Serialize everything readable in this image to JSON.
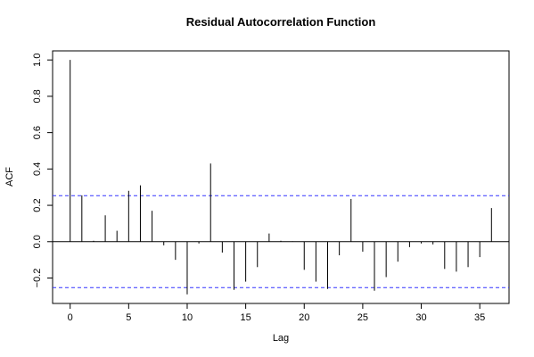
{
  "chart_data": {
    "type": "bar",
    "title": "Residual Autocorrelation Function",
    "xlabel": "Lag",
    "ylabel": "ACF",
    "xlim": [
      -1.5,
      37.5
    ],
    "ylim": [
      -0.34,
      1.05
    ],
    "x_ticks": [
      0,
      5,
      10,
      15,
      20,
      25,
      30,
      35
    ],
    "y_ticks": [
      -0.2,
      0.0,
      0.2,
      0.4,
      0.6,
      0.8,
      1.0
    ],
    "y_tick_labels": [
      "−0.2",
      "0.0",
      "0.2",
      "0.4",
      "0.6",
      "0.8",
      "1.0"
    ],
    "confidence_bound": 0.253,
    "zero_line": true,
    "colors": {
      "bars": "#000000",
      "bound": "#3333ff",
      "axis": "#000000"
    },
    "lags": [
      0,
      1,
      2,
      3,
      4,
      5,
      6,
      7,
      8,
      9,
      10,
      11,
      12,
      13,
      14,
      15,
      16,
      17,
      18,
      19,
      20,
      21,
      22,
      23,
      24,
      25,
      26,
      27,
      28,
      29,
      30,
      31,
      32,
      33,
      34,
      35,
      36
    ],
    "values": [
      1.0,
      0.255,
      0.005,
      0.145,
      0.06,
      0.28,
      0.31,
      0.17,
      -0.02,
      -0.1,
      -0.29,
      -0.01,
      0.43,
      -0.06,
      -0.265,
      -0.22,
      -0.14,
      0.045,
      0.005,
      0.002,
      -0.155,
      -0.22,
      -0.26,
      -0.075,
      0.235,
      -0.055,
      -0.27,
      -0.195,
      -0.11,
      -0.03,
      -0.01,
      -0.015,
      -0.15,
      -0.165,
      -0.14,
      -0.085,
      0.185
    ]
  }
}
